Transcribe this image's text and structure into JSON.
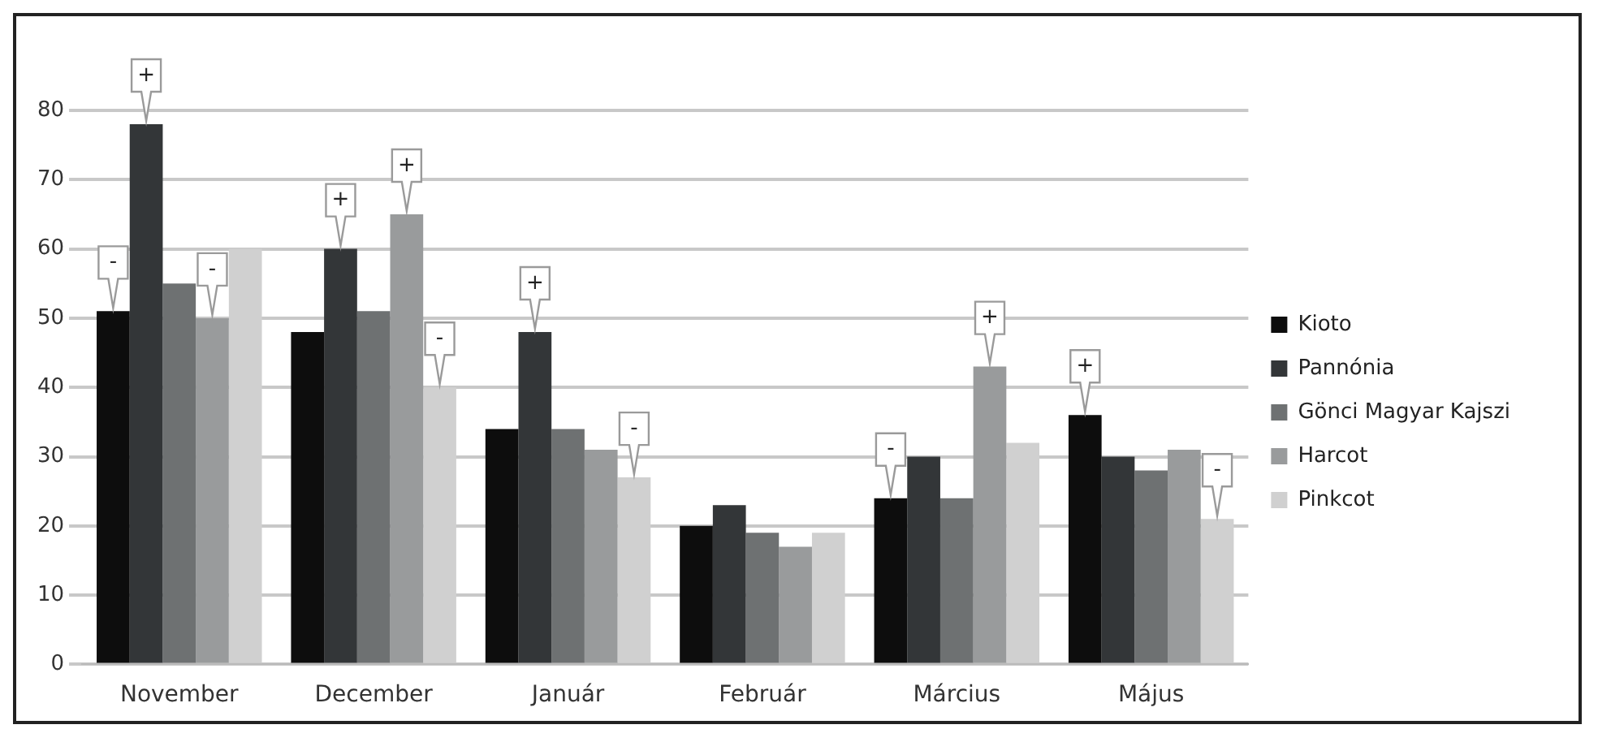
{
  "chart_data": {
    "type": "bar",
    "categories": [
      "November",
      "December",
      "Január",
      "Február",
      "Március",
      "Május"
    ],
    "series": [
      {
        "name": "Kioto",
        "color": "#0d0d0d",
        "values": [
          51,
          48,
          34,
          20,
          24,
          36
        ],
        "value_labels": [
          "-",
          null,
          null,
          null,
          "-",
          "+"
        ]
      },
      {
        "name": "Pannónia",
        "color": "#333638",
        "values": [
          78,
          60,
          48,
          23,
          30,
          30
        ],
        "value_labels": [
          "+",
          "+",
          "+",
          null,
          null,
          null
        ]
      },
      {
        "name": "Gönci Magyar Kajszi",
        "color": "#6e7172",
        "values": [
          55,
          51,
          34,
          19,
          24,
          28
        ]
      },
      {
        "name": "Harcot",
        "color": "#999b9c",
        "values": [
          50,
          65,
          31,
          17,
          43,
          31
        ],
        "value_labels": [
          "-",
          "+",
          null,
          null,
          "+",
          null
        ]
      },
      {
        "name": "Pinkcot",
        "color": "#d0d0d0",
        "values": [
          60,
          40,
          27,
          19,
          32,
          21
        ],
        "value_labels": [
          null,
          "-",
          "-",
          null,
          null,
          "-"
        ]
      }
    ],
    "ylim": [
      0,
      80
    ],
    "yticks": [
      0,
      10,
      20,
      30,
      40,
      50,
      60,
      70,
      80
    ],
    "grid": "y",
    "legend": "right"
  }
}
